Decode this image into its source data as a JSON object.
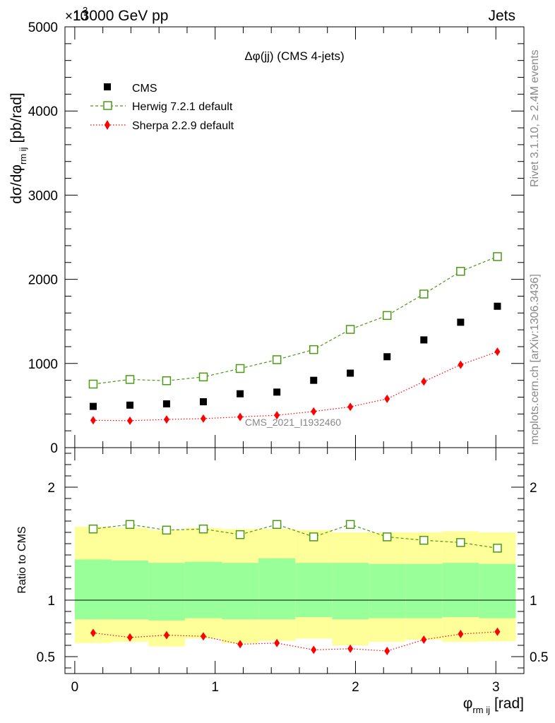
{
  "header": {
    "left": "13000 GeV pp",
    "right": "Jets",
    "exponent_prefix": "×10",
    "exponent_value": "3"
  },
  "side_labels": {
    "rivet": "Rivet 3.1.10, ≥ 2.4M events",
    "mcplots": "mcplots.cern.ch [arXiv:1306.3436]"
  },
  "watermark": "CMS_2021_I1932460",
  "chart_data": [
    {
      "type": "scatter",
      "panel": "main",
      "title": "Δφ(jj) (CMS 4-jets)",
      "ylabel": "dσ/dφ",
      "ylabel_sub": "rm ij",
      "ylabel_unit": "[pb/rad]",
      "ylim": [
        0,
        5000
      ],
      "yticks": [
        0,
        1000,
        2000,
        3000,
        4000,
        5000
      ],
      "ytick_labels": [
        "0",
        "1000",
        "2000",
        "3000",
        "4000",
        "5000"
      ],
      "xlim": [
        -0.07,
        3.2
      ],
      "legend_placement": "top-left",
      "x": [
        0.131,
        0.393,
        0.654,
        0.916,
        1.178,
        1.44,
        1.702,
        1.963,
        2.225,
        2.487,
        2.749,
        3.011
      ],
      "series": [
        {
          "name": "CMS",
          "color": "#000000",
          "marker": "square-filled",
          "values": [
            490,
            505,
            520,
            545,
            640,
            660,
            800,
            885,
            1080,
            1280,
            1490,
            1680
          ]
        },
        {
          "name": "Herwig 7.2.1 default",
          "color": "#4a9a16",
          "marker": "square-open",
          "line": "dashed",
          "values": [
            755,
            810,
            795,
            840,
            940,
            1045,
            1165,
            1405,
            1570,
            1825,
            2095,
            2270
          ]
        },
        {
          "name": "Sherpa 2.2.9 default",
          "color": "#ff0000",
          "marker": "diamond-filled",
          "line": "dotted",
          "values": [
            325,
            320,
            335,
            345,
            365,
            385,
            430,
            485,
            580,
            785,
            985,
            1140
          ]
        }
      ]
    },
    {
      "type": "scatter",
      "panel": "ratio",
      "ylabel": "Ratio to CMS",
      "xlabel": "φ",
      "xlabel_sub": "rm ij",
      "xlabel_unit": "[rad]",
      "xlim": [
        -0.07,
        3.2
      ],
      "ylim": [
        0.35,
        2.35
      ],
      "yticks": [
        0.5,
        1,
        2
      ],
      "ytick_labels": [
        "0.5",
        "1",
        "2"
      ],
      "xticks": [
        0,
        1,
        2,
        3
      ],
      "xtick_labels": [
        "0",
        "1",
        "2",
        "3"
      ],
      "x": [
        0.131,
        0.393,
        0.654,
        0.916,
        1.178,
        1.44,
        1.702,
        1.963,
        2.225,
        2.487,
        2.749,
        3.011
      ],
      "bin_edges": [
        0,
        0.262,
        0.524,
        0.785,
        1.047,
        1.309,
        1.571,
        1.833,
        2.094,
        2.356,
        2.618,
        2.88,
        3.142
      ],
      "band_outer": {
        "color": "#ffff99",
        "low": [
          0.62,
          0.63,
          0.59,
          0.66,
          0.62,
          0.64,
          0.66,
          0.6,
          0.63,
          0.65,
          0.63,
          0.635
        ],
        "high": [
          1.65,
          1.64,
          1.62,
          1.64,
          1.63,
          1.63,
          1.62,
          1.6,
          1.6,
          1.6,
          1.61,
          1.6
        ]
      },
      "band_inner": {
        "color": "#99ff99",
        "low": [
          0.83,
          0.83,
          0.82,
          0.84,
          0.83,
          0.83,
          0.85,
          0.83,
          0.84,
          0.84,
          0.85,
          0.84
        ],
        "high": [
          1.36,
          1.35,
          1.33,
          1.34,
          1.33,
          1.37,
          1.33,
          1.33,
          1.32,
          1.32,
          1.33,
          1.32
        ]
      },
      "series": [
        {
          "name": "Herwig 7.2.1 default",
          "color": "#4a9a16",
          "marker": "square-open",
          "line": "dashed",
          "values": [
            1.63,
            1.67,
            1.62,
            1.63,
            1.58,
            1.67,
            1.56,
            1.67,
            1.56,
            1.53,
            1.51,
            1.46
          ]
        },
        {
          "name": "Sherpa 2.2.9 default",
          "color": "#ff0000",
          "marker": "diamond-filled",
          "line": "dotted",
          "values": [
            0.71,
            0.67,
            0.69,
            0.68,
            0.61,
            0.62,
            0.56,
            0.57,
            0.55,
            0.65,
            0.7,
            0.72
          ]
        }
      ]
    }
  ]
}
